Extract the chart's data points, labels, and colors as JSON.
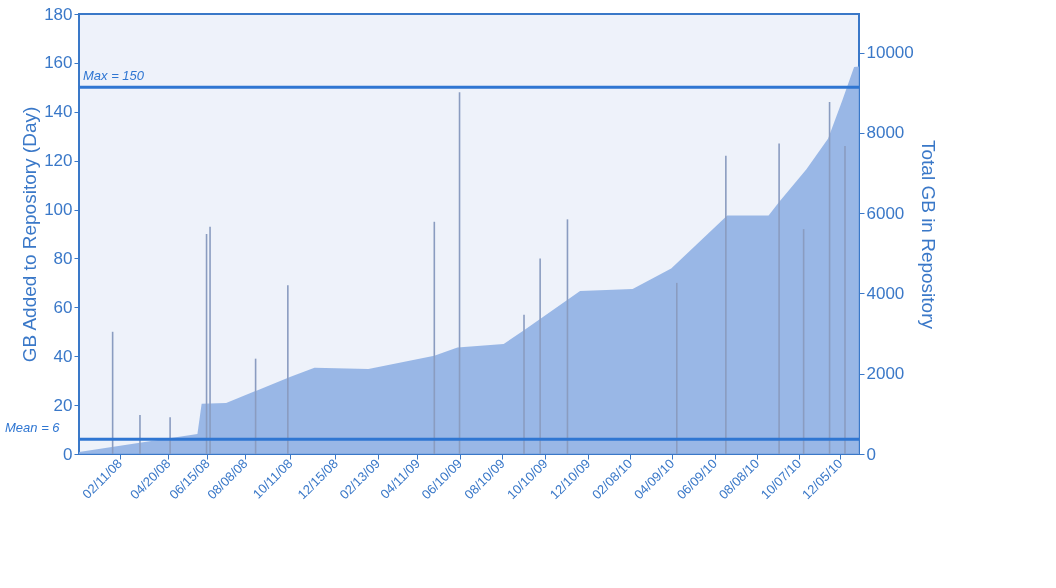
{
  "chart_data": {
    "type": "bar",
    "ylabel": "GB Added to Repository (Day)",
    "y2label": "Total GB in Repository",
    "xlim": [
      "2007-12-15",
      "2011-01-01"
    ],
    "xticks": [
      {
        "value": "2008-02-11",
        "label": "02/11/08"
      },
      {
        "value": "2008-04-20",
        "label": "04/20/08"
      },
      {
        "value": "2008-06-15",
        "label": "06/15/08"
      },
      {
        "value": "2008-08-08",
        "label": "08/08/08"
      },
      {
        "value": "2008-10-11",
        "label": "10/11/08"
      },
      {
        "value": "2008-12-15",
        "label": "12/15/08"
      },
      {
        "value": "2009-02-13",
        "label": "02/13/09"
      },
      {
        "value": "2009-04-11",
        "label": "04/11/09"
      },
      {
        "value": "2009-06-10",
        "label": "06/10/09"
      },
      {
        "value": "2009-08-10",
        "label": "08/10/09"
      },
      {
        "value": "2009-10-10",
        "label": "10/10/09"
      },
      {
        "value": "2009-12-10",
        "label": "12/10/09"
      },
      {
        "value": "2010-02-08",
        "label": "02/08/10"
      },
      {
        "value": "2010-04-09",
        "label": "04/09/10"
      },
      {
        "value": "2010-06-09",
        "label": "06/09/10"
      },
      {
        "value": "2010-08-08",
        "label": "08/08/10"
      },
      {
        "value": "2010-10-07",
        "label": "10/07/10"
      },
      {
        "value": "2010-12-05",
        "label": "12/05/10"
      }
    ],
    "ylim": [
      0,
      180
    ],
    "yticks": [
      0,
      20,
      40,
      60,
      80,
      100,
      120,
      140,
      160,
      180
    ],
    "y2lim": [
      0,
      10960
    ],
    "y2ticks": [
      0,
      2000,
      4000,
      6000,
      8000,
      10000
    ],
    "series": [
      {
        "type": "area",
        "axis": "y2",
        "color": "#8fb0e3",
        "x": [
          "2007-12-15",
          "2008-06-01",
          "2008-06-07",
          "2008-07-12",
          "2008-10-11",
          "2008-11-15",
          "2009-01-31",
          "2009-05-05",
          "2009-06-07",
          "2009-08-12",
          "2009-09-10",
          "2009-11-29",
          "2010-02-12",
          "2010-04-08",
          "2010-06-27",
          "2010-08-25",
          "2010-09-09",
          "2010-10-18",
          "2010-11-18",
          "2010-12-08",
          "2010-12-25",
          "2011-01-01"
        ],
        "values": [
          50,
          500,
          1250,
          1270,
          1920,
          2150,
          2120,
          2450,
          2650,
          2740,
          3080,
          4060,
          4110,
          4620,
          5940,
          5940,
          6280,
          7090,
          7860,
          8800,
          9640,
          9650
        ]
      },
      {
        "type": "bar",
        "color": "#8a9cc0",
        "x": [
          "2008-02-01",
          "2008-03-11",
          "2008-04-23",
          "2008-06-14",
          "2008-06-19",
          "2008-08-23",
          "2008-10-08",
          "2009-05-05",
          "2009-06-10",
          "2009-09-10",
          "2009-10-03",
          "2009-11-11",
          "2010-04-16",
          "2010-06-25",
          "2010-09-09",
          "2010-10-14",
          "2010-11-20",
          "2010-12-12"
        ],
        "values": [
          50,
          16,
          15,
          90,
          93,
          39,
          69,
          95,
          148,
          57,
          80,
          96,
          70,
          122,
          127,
          92,
          144,
          126
        ]
      }
    ],
    "ref_lines": [
      {
        "axis": "y",
        "value": 150,
        "label": "Max = 150",
        "color": "#2f76d2"
      },
      {
        "axis": "y",
        "value": 6,
        "label": "Mean = 6",
        "color": "#2f76d2"
      }
    ],
    "grid": false
  }
}
